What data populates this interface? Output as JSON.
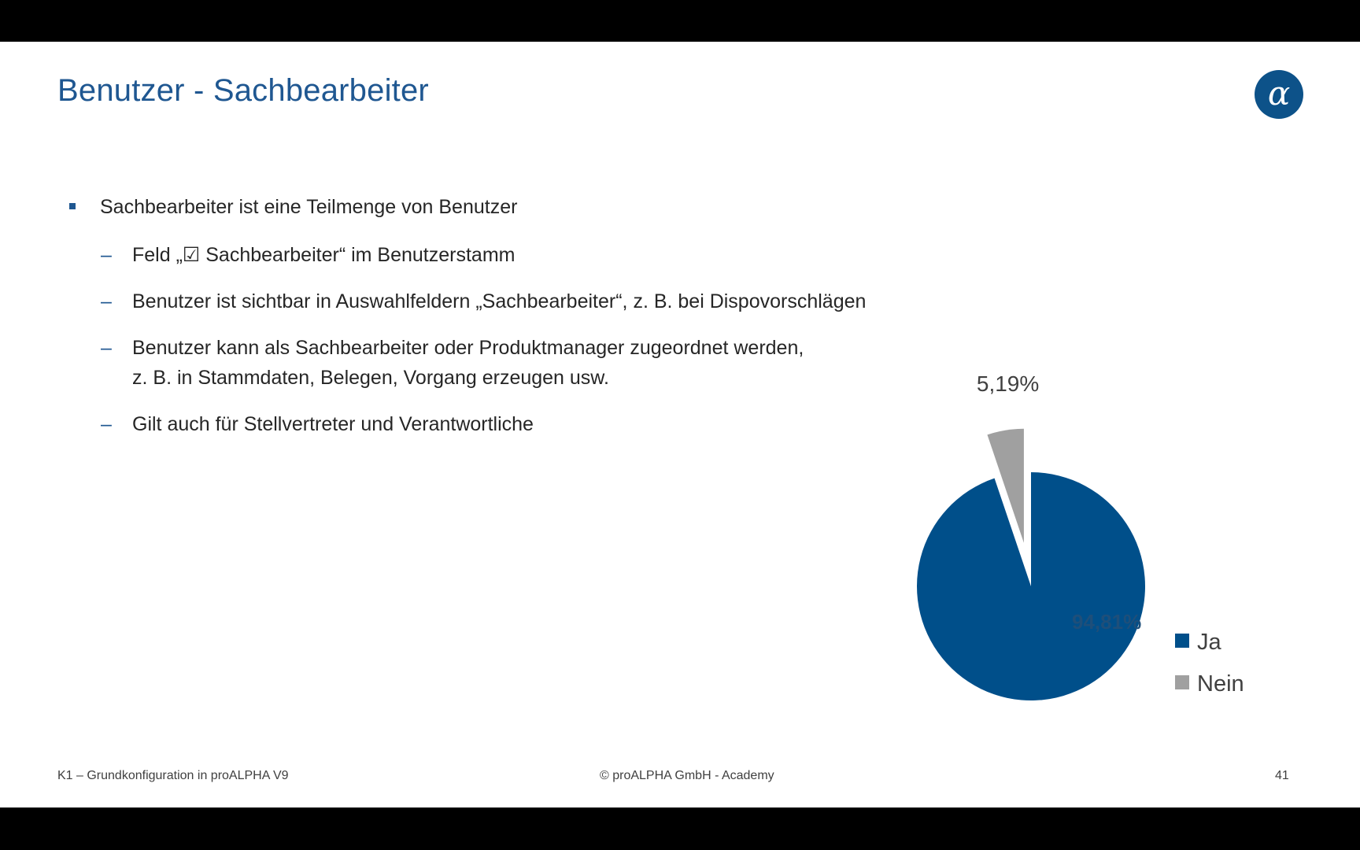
{
  "slide": {
    "title": "Benutzer - Sachbearbeiter",
    "bullets": {
      "main": "Sachbearbeiter ist eine Teilmenge von Benutzer",
      "sub": [
        {
          "dash": "–",
          "lines": [
            "Feld „☑ Sachbearbeiter“ im Benutzerstamm"
          ]
        },
        {
          "dash": "–",
          "lines": [
            "Benutzer ist sichtbar in Auswahlfeldern „Sachbearbeiter“, z. B. bei Dispovorschlägen"
          ]
        },
        {
          "dash": "–",
          "lines": [
            "Benutzer kann als Sachbearbeiter oder Produktmanager zugeordnet werden,",
            "z. B. in Stammdaten, Belegen, Vorgang erzeugen usw."
          ]
        },
        {
          "dash": "–",
          "lines": [
            "Gilt auch für Stellvertreter und Verantwortliche"
          ]
        }
      ]
    },
    "footer": {
      "left": "K1 – Grundkonfiguration in proALPHA V9",
      "center": "© proALPHA GmbH - Academy",
      "page_number": "41"
    },
    "logo_icon": "alpha-logo-icon",
    "colors": {
      "title": "#1f5791",
      "ja": "#004f8a",
      "nein": "#a0a0a0",
      "logo": "#0d5289"
    }
  },
  "chart_data": {
    "type": "pie",
    "categories": [
      "Ja",
      "Nein"
    ],
    "values": [
      94.81,
      5.19
    ],
    "data_labels": [
      "94,81%",
      "5,19%"
    ],
    "exploded": [
      "Nein"
    ],
    "legend": "right",
    "colors": [
      "#004f8a",
      "#a0a0a0"
    ]
  }
}
